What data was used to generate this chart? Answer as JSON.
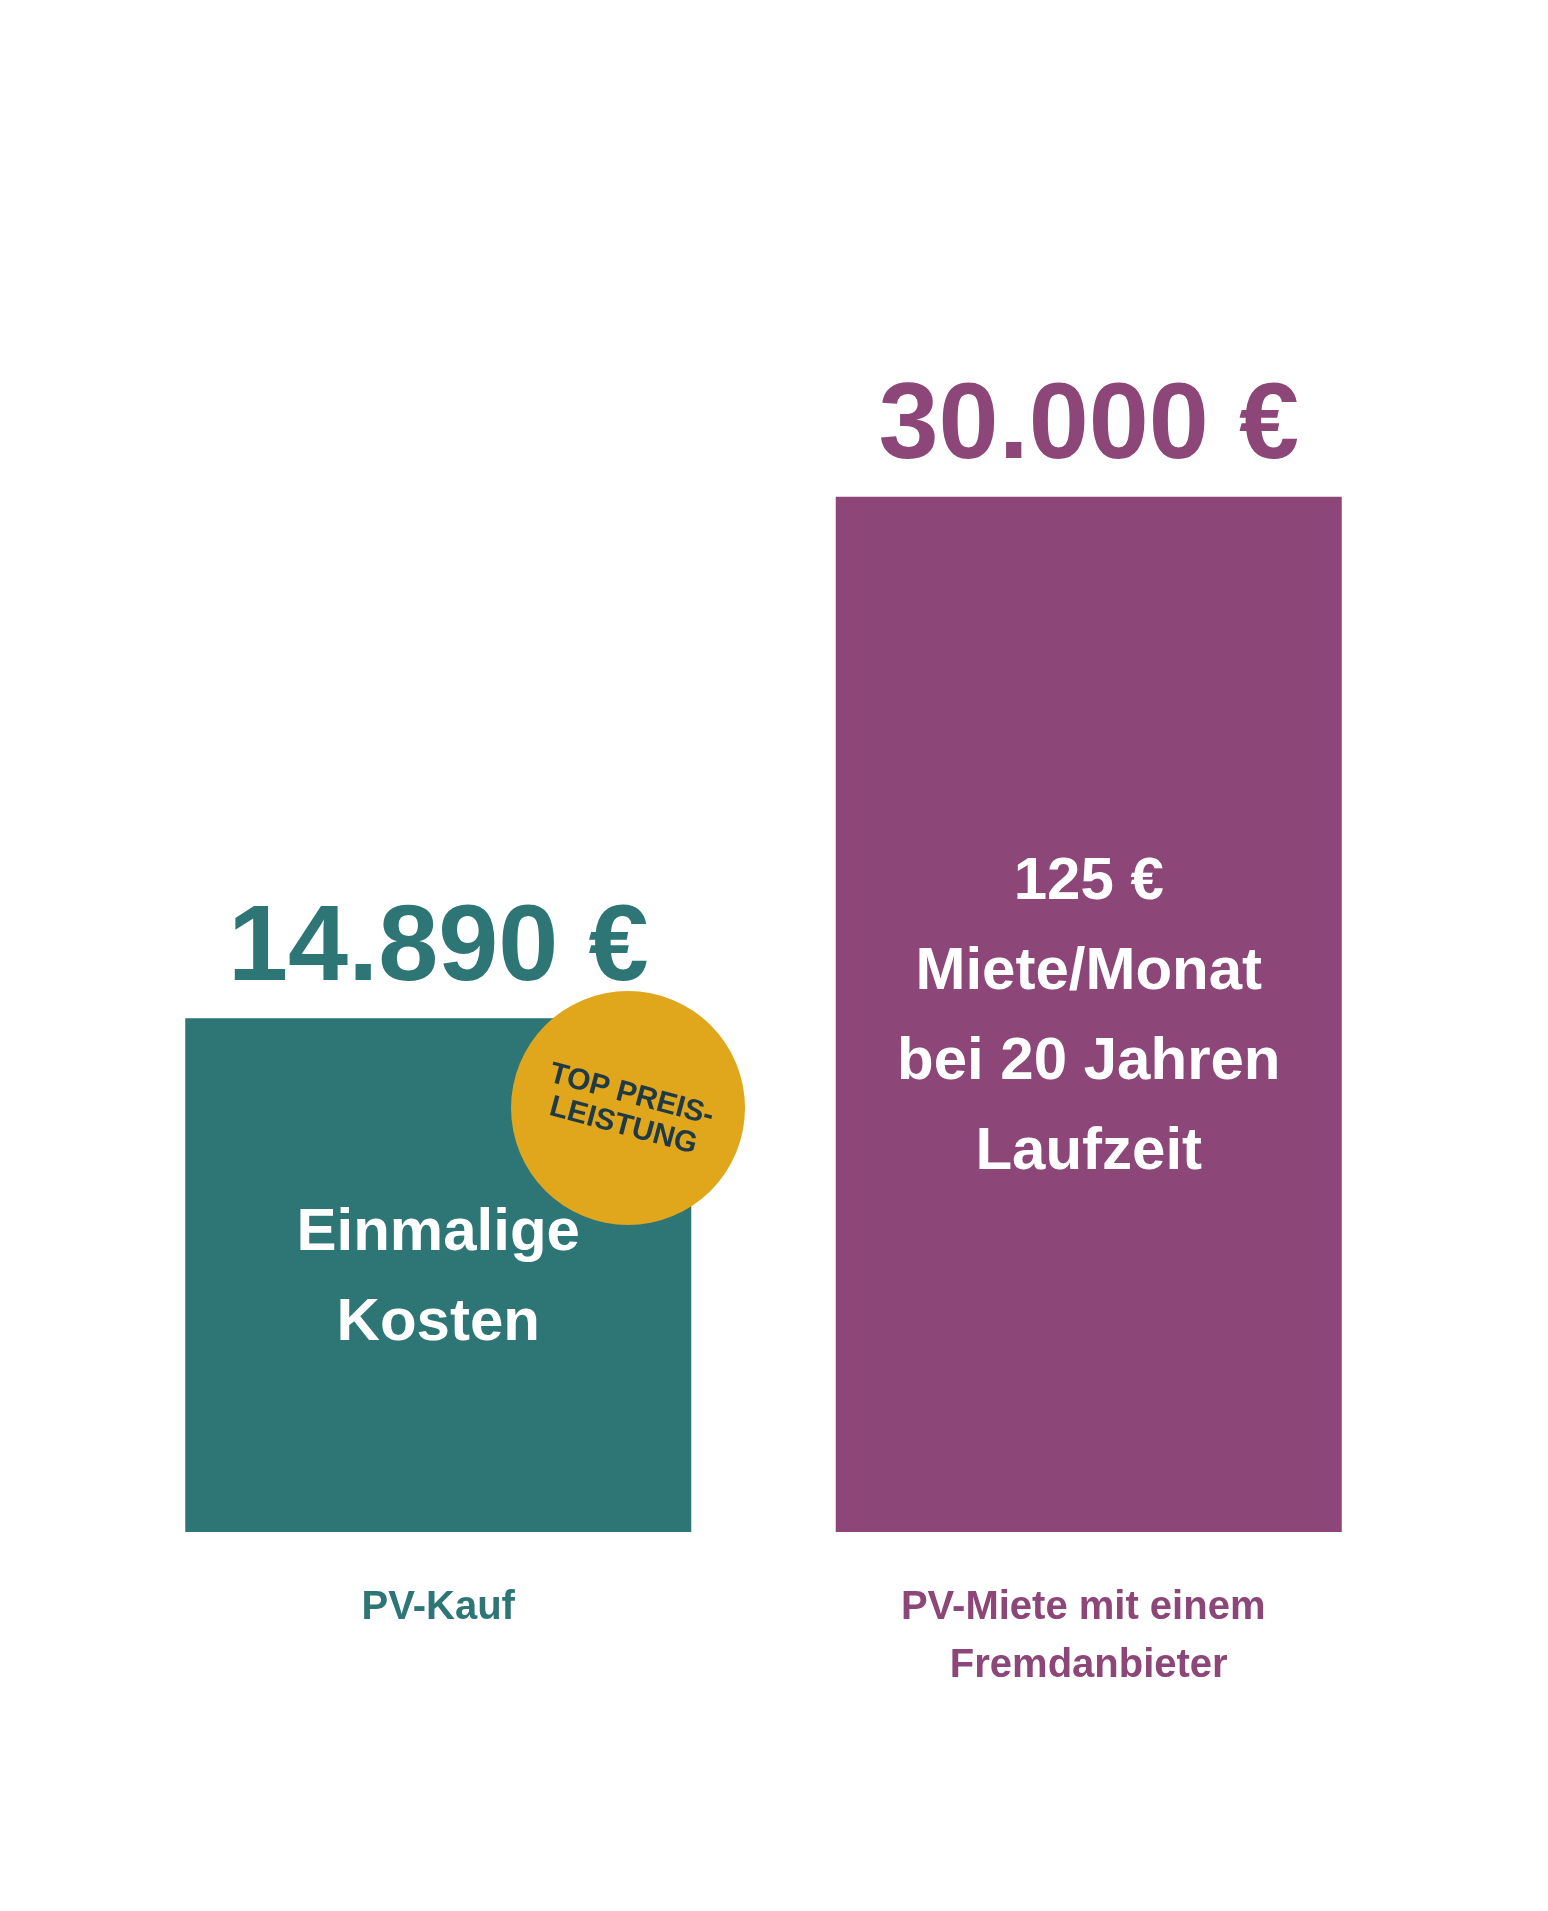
{
  "chart_data": {
    "type": "bar",
    "categories": [
      "PV-Kauf",
      "PV-Miete mit einem Fremdanbieter"
    ],
    "values": [
      14890,
      30000
    ],
    "colors": [
      "#2e7576",
      "#8c4677"
    ],
    "value_labels": [
      "14.890 €",
      "30.000 €"
    ],
    "annotations": [
      "Einmalige Kosten",
      "125 € Miete/Monat bei 20 Jahren Laufzeit",
      "TOP PREIS-LEISTUNG"
    ]
  }
}
